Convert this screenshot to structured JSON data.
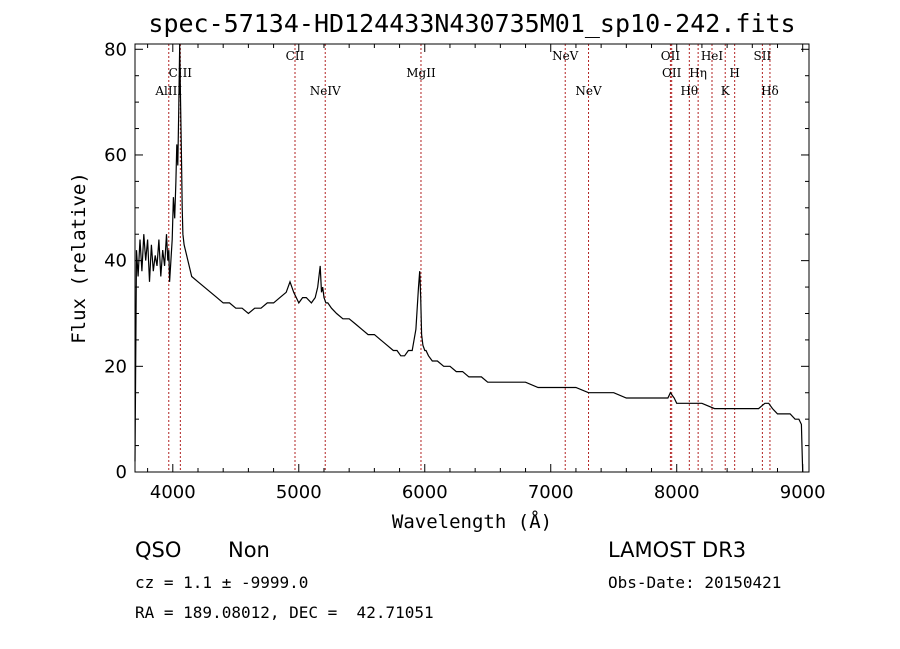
{
  "chart_data": {
    "type": "line",
    "title": "spec-57134-HD124433N430735M01_sp10-242.fits",
    "xlabel": "Wavelength (Å)",
    "ylabel": "Flux (relative)",
    "xlim": [
      3700,
      9050
    ],
    "ylim": [
      0,
      81
    ],
    "xticks": [
      4000,
      5000,
      6000,
      7000,
      8000,
      9000
    ],
    "yticks": [
      0,
      20,
      40,
      60,
      80
    ],
    "grid": false,
    "series": [
      {
        "values_x": [
          3700,
          3712,
          3725,
          3740,
          3755,
          3770,
          3785,
          3800,
          3815,
          3830,
          3845,
          3860,
          3875,
          3890,
          3905,
          3920,
          3935,
          3950,
          3960,
          3968,
          3975,
          3985,
          3995,
          4005,
          4015,
          4025,
          4032,
          4040,
          4047,
          4055,
          4060,
          4065,
          4070,
          4075,
          4080,
          4090,
          4100,
          4120,
          4150,
          4200,
          4250,
          4300,
          4350,
          4400,
          4450,
          4500,
          4550,
          4600,
          4650,
          4700,
          4750,
          4800,
          4850,
          4900,
          4930,
          4960,
          4980,
          5000,
          5030,
          5060,
          5100,
          5130,
          5150,
          5170,
          5180,
          5190,
          5200,
          5215,
          5230,
          5260,
          5300,
          5350,
          5400,
          5450,
          5500,
          5550,
          5600,
          5650,
          5700,
          5750,
          5780,
          5810,
          5840,
          5870,
          5900,
          5930,
          5950,
          5960,
          5968,
          5975,
          5985,
          6000,
          6010,
          6030,
          6060,
          6100,
          6150,
          6200,
          6250,
          6300,
          6350,
          6400,
          6450,
          6500,
          6600,
          6700,
          6800,
          6900,
          7000,
          7100,
          7200,
          7300,
          7400,
          7500,
          7600,
          7700,
          7800,
          7900,
          7930,
          7950,
          7980,
          8000,
          8100,
          8200,
          8300,
          8400,
          8500,
          8600,
          8650,
          8700,
          8730,
          8760,
          8800,
          8850,
          8900,
          8940,
          8970,
          8990,
          8995,
          9000
        ],
        "values_y": [
          2,
          42,
          37,
          44,
          38,
          45,
          40,
          44,
          36,
          43,
          38,
          41,
          39,
          44,
          37,
          42,
          39,
          45,
          40,
          42,
          36,
          40,
          44,
          52,
          48,
          55,
          62,
          58,
          68,
          81,
          72,
          65,
          58,
          50,
          45,
          43,
          42,
          40,
          37,
          36,
          35,
          34,
          33,
          32,
          32,
          31,
          31,
          30,
          31,
          31,
          32,
          32,
          33,
          34,
          36,
          34,
          33,
          32,
          33,
          33,
          32,
          33,
          35,
          39,
          34,
          35,
          33,
          32,
          32,
          31,
          30,
          29,
          29,
          28,
          27,
          26,
          26,
          25,
          24,
          23,
          23,
          22,
          22,
          23,
          23,
          27,
          35,
          38,
          33,
          26,
          24,
          23,
          23,
          22,
          21,
          21,
          20,
          20,
          19,
          19,
          18,
          18,
          18,
          17,
          17,
          17,
          17,
          16,
          16,
          16,
          16,
          15,
          15,
          15,
          14,
          14,
          14,
          14,
          14,
          15,
          14,
          13,
          13,
          13,
          12,
          12,
          12,
          12,
          12,
          13,
          13,
          12,
          11,
          11,
          11,
          10,
          10,
          9,
          4,
          0
        ]
      }
    ],
    "emission_lines": [
      {
        "label": "AlIII",
        "wavelength": 3968
      },
      {
        "label": "CIII",
        "wavelength": 4060
      },
      {
        "label": "CII",
        "wavelength": 4970
      },
      {
        "label": "NeIV",
        "wavelength": 5210
      },
      {
        "label": "MgII",
        "wavelength": 5970
      },
      {
        "label": "NeV",
        "wavelength": 7115
      },
      {
        "label": "NeV",
        "wavelength": 7300
      },
      {
        "label": "OII",
        "wavelength": 7950
      },
      {
        "label": "OII",
        "wavelength": 7960
      },
      {
        "label": "Hθ",
        "wavelength": 8100
      },
      {
        "label": "Hη",
        "wavelength": 8170
      },
      {
        "label": "HeI",
        "wavelength": 8280
      },
      {
        "label": "K",
        "wavelength": 8385
      },
      {
        "label": "H",
        "wavelength": 8460
      },
      {
        "label": "SII",
        "wavelength": 8680
      },
      {
        "label": "Hδ",
        "wavelength": 8740
      }
    ],
    "line_color": "#000000",
    "marker_color": "#b22222"
  },
  "info": {
    "class_label": "QSO",
    "subclass_label": "Non",
    "survey": "LAMOST DR3",
    "cz": "cz = 1.1 ± -9999.0",
    "obs_date": "Obs-Date: 20150421",
    "coords": "RA = 189.08012, DEC =  42.71051"
  }
}
